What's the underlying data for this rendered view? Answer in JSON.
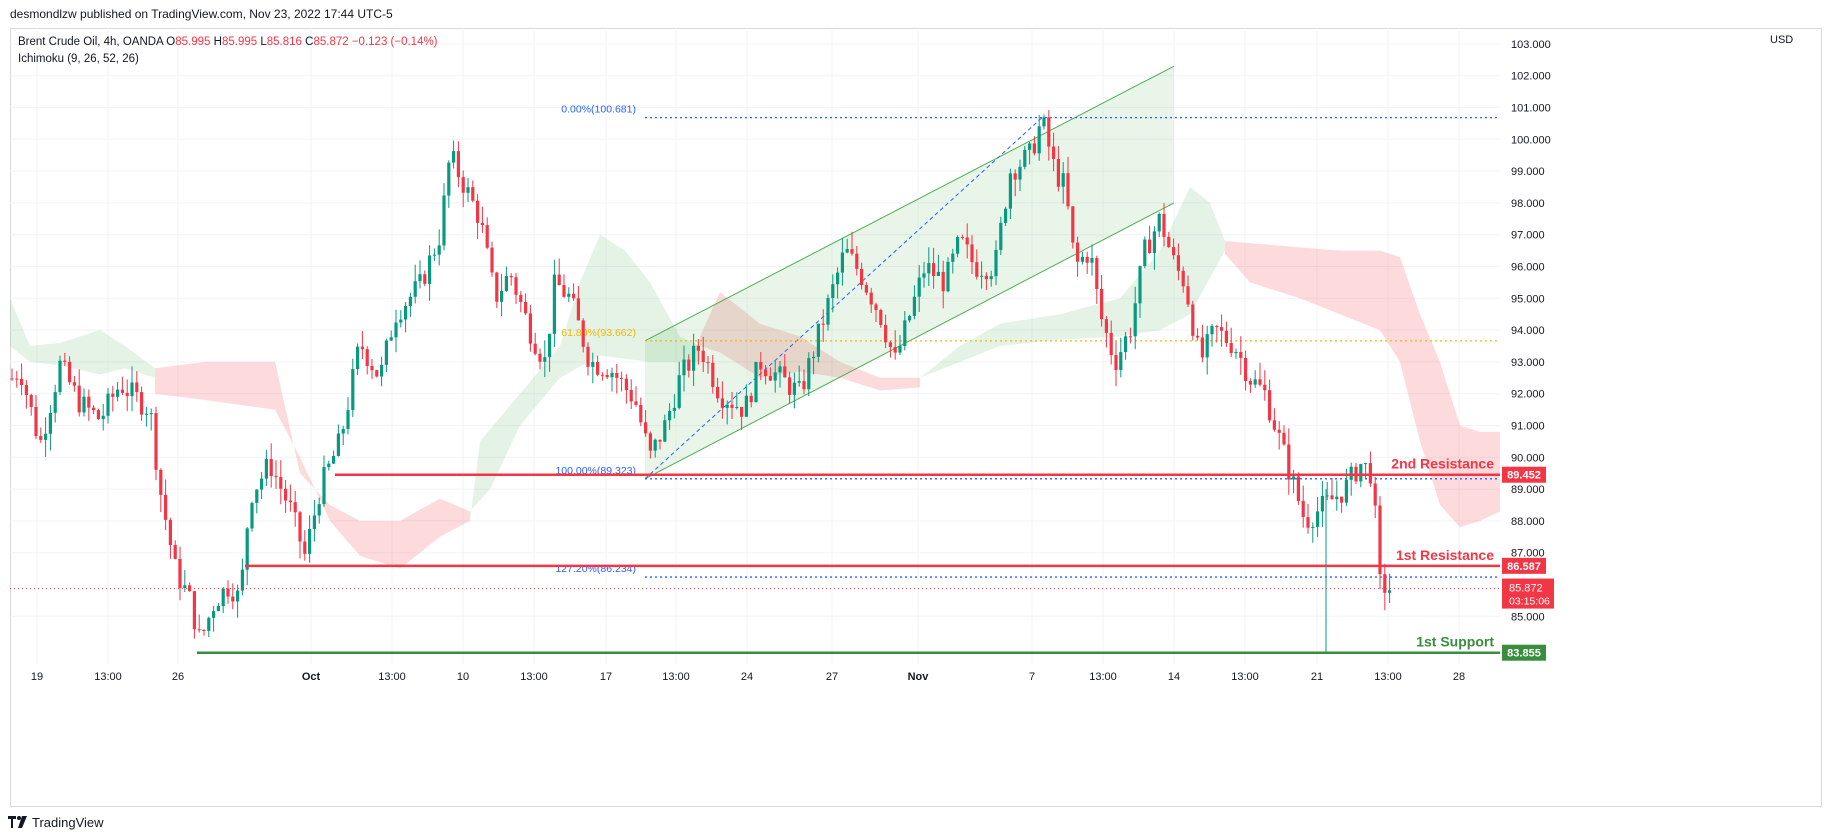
{
  "header": {
    "published_text": "desmondlzw published on TradingView.com, Nov 23, 2022 17:44 UTC-5"
  },
  "legend": {
    "symbol": "Brent Crude Oil, 4h, OANDA",
    "open": "O85.995",
    "high": "H85.995",
    "low": "L85.816",
    "close": "C85.872",
    "change": "−0.123 (−0.14%)",
    "indicator": "Ichimoku (9, 26, 52, 26)"
  },
  "currency": "USD",
  "brand": {
    "name": "TradingView"
  },
  "colors": {
    "up": "#089981",
    "down": "#f23645",
    "resistance": "#f23645",
    "support": "#388e3c",
    "fib": "#2962ff",
    "fib_mid": "#f2b705",
    "channel": "#4caf50",
    "grid": "#f0f3fa"
  },
  "chart_data": {
    "type": "candlestick",
    "symbol": "Brent Crude Oil",
    "timeframe": "4h",
    "y_axis": {
      "unit": "USD",
      "range": [
        83.5,
        103.5
      ],
      "ticks": [
        "103.000",
        "102.000",
        "101.000",
        "100.000",
        "99.000",
        "98.000",
        "97.000",
        "96.000",
        "95.000",
        "94.000",
        "93.000",
        "92.000",
        "91.000",
        "90.000",
        "89.000",
        "88.000",
        "87.000",
        "85.000"
      ]
    },
    "x_axis": {
      "ticks": [
        "19",
        "13:00",
        "26",
        "Oct",
        "13:00",
        "10",
        "13:00",
        "17",
        "13:00",
        "24",
        "27",
        "Nov",
        "7",
        "13:00",
        "14",
        "13:00",
        "21",
        "13:00",
        "28"
      ]
    },
    "levels": [
      {
        "label": "2nd Resistance",
        "price": 89.452,
        "price_label": "89.452",
        "type": "resistance"
      },
      {
        "label": "1st Resistance",
        "price": 86.587,
        "price_label": "86.587",
        "type": "resistance"
      },
      {
        "label": "1st Support",
        "price": 83.855,
        "price_label": "83.855",
        "type": "support"
      }
    ],
    "last_price": {
      "value": "85.872",
      "countdown": "03:15:06"
    },
    "fibonacci": [
      {
        "label": "0.00%(100.681)",
        "price": 100.681
      },
      {
        "label": "61.80%(93.662)",
        "price": 93.662
      },
      {
        "label": "100.00%(89.323)",
        "price": 89.323
      },
      {
        "label": "127.20%(86.234)",
        "price": 86.234
      }
    ],
    "price_path": [
      [
        0,
        92.0
      ],
      [
        20,
        92.8
      ],
      [
        40,
        90.4
      ],
      [
        60,
        92.9
      ],
      [
        80,
        91.7
      ],
      [
        100,
        91.2
      ],
      [
        120,
        92.3
      ],
      [
        150,
        91.5
      ],
      [
        160,
        89.0
      ],
      [
        175,
        86.5
      ],
      [
        190,
        85.5
      ],
      [
        200,
        84.2
      ],
      [
        215,
        85.5
      ],
      [
        230,
        86.0
      ],
      [
        240,
        85.5
      ],
      [
        250,
        88.8
      ],
      [
        270,
        89.8
      ],
      [
        290,
        88.4
      ],
      [
        305,
        86.9
      ],
      [
        320,
        89.0
      ],
      [
        340,
        90.5
      ],
      [
        350,
        92.0
      ],
      [
        360,
        93.6
      ],
      [
        380,
        92.5
      ],
      [
        395,
        94.5
      ],
      [
        420,
        95.4
      ],
      [
        440,
        97.0
      ],
      [
        450,
        99.5
      ],
      [
        465,
        98.5
      ],
      [
        480,
        97.5
      ],
      [
        495,
        95.0
      ],
      [
        510,
        95.8
      ],
      [
        530,
        94.0
      ],
      [
        545,
        93.0
      ],
      [
        555,
        95.5
      ],
      [
        570,
        95.0
      ],
      [
        590,
        93.0
      ],
      [
        610,
        92.8
      ],
      [
        635,
        91.8
      ],
      [
        650,
        90.0
      ],
      [
        665,
        91.0
      ],
      [
        680,
        92.5
      ],
      [
        700,
        93.5
      ],
      [
        720,
        92.0
      ],
      [
        745,
        91.5
      ],
      [
        760,
        93.0
      ],
      [
        780,
        92.5
      ],
      [
        800,
        92.0
      ],
      [
        815,
        93.5
      ],
      [
        830,
        95.0
      ],
      [
        845,
        96.5
      ],
      [
        860,
        95.8
      ],
      [
        880,
        94.5
      ],
      [
        895,
        93.0
      ],
      [
        910,
        94.5
      ],
      [
        925,
        96.0
      ],
      [
        945,
        95.5
      ],
      [
        960,
        96.8
      ],
      [
        975,
        96.0
      ],
      [
        995,
        96.0
      ],
      [
        1010,
        99.0
      ],
      [
        1030,
        99.5
      ],
      [
        1042,
        100.6
      ],
      [
        1055,
        99.0
      ],
      [
        1065,
        98.5
      ],
      [
        1075,
        96.0
      ],
      [
        1090,
        96.5
      ],
      [
        1100,
        94.5
      ],
      [
        1115,
        93.0
      ],
      [
        1130,
        94.0
      ],
      [
        1145,
        96.5
      ],
      [
        1160,
        97.5
      ],
      [
        1175,
        96.0
      ],
      [
        1185,
        95.5
      ],
      [
        1200,
        93.0
      ],
      [
        1215,
        94.0
      ],
      [
        1235,
        93.5
      ],
      [
        1250,
        92.5
      ],
      [
        1265,
        92.0
      ],
      [
        1280,
        90.5
      ],
      [
        1295,
        89.0
      ],
      [
        1305,
        88.0
      ],
      [
        1325,
        88.5
      ],
      [
        1345,
        89.0
      ],
      [
        1360,
        89.8
      ],
      [
        1372,
        89.5
      ],
      [
        1380,
        86.0
      ],
      [
        1390,
        85.87
      ]
    ],
    "title": "",
    "xlabel": "",
    "ylabel": ""
  }
}
